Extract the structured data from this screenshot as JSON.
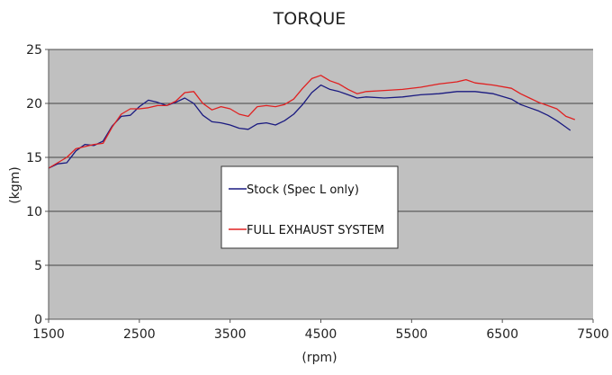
{
  "chart_data": {
    "type": "line",
    "title": "TORQUE",
    "xlabel": "(rpm)",
    "ylabel": "(kgm)",
    "xlim": [
      1500,
      7500
    ],
    "ylim": [
      0,
      25
    ],
    "xticks": [
      1500,
      2500,
      3500,
      4500,
      5500,
      6500,
      7500
    ],
    "yticks": [
      0,
      5,
      10,
      15,
      20,
      25
    ],
    "grid": "horizontal",
    "legend_placement": "center",
    "background": "#c0c0c0",
    "series": [
      {
        "name": "Stock (Spec L only)",
        "color": "#1a1a80",
        "points": [
          [
            1500,
            14.0
          ],
          [
            1600,
            14.4
          ],
          [
            1700,
            14.5
          ],
          [
            1800,
            15.6
          ],
          [
            1900,
            16.2
          ],
          [
            2000,
            16.1
          ],
          [
            2100,
            16.5
          ],
          [
            2200,
            17.9
          ],
          [
            2300,
            18.8
          ],
          [
            2400,
            18.9
          ],
          [
            2500,
            19.7
          ],
          [
            2600,
            20.3
          ],
          [
            2700,
            20.1
          ],
          [
            2800,
            19.8
          ],
          [
            2900,
            20.1
          ],
          [
            3000,
            20.5
          ],
          [
            3100,
            20.0
          ],
          [
            3200,
            18.9
          ],
          [
            3300,
            18.3
          ],
          [
            3400,
            18.2
          ],
          [
            3500,
            18.0
          ],
          [
            3600,
            17.7
          ],
          [
            3700,
            17.6
          ],
          [
            3800,
            18.1
          ],
          [
            3900,
            18.2
          ],
          [
            4000,
            18.0
          ],
          [
            4100,
            18.4
          ],
          [
            4200,
            19.0
          ],
          [
            4300,
            19.9
          ],
          [
            4400,
            21.0
          ],
          [
            4500,
            21.7
          ],
          [
            4600,
            21.3
          ],
          [
            4700,
            21.1
          ],
          [
            4800,
            20.8
          ],
          [
            4900,
            20.5
          ],
          [
            5000,
            20.6
          ],
          [
            5200,
            20.5
          ],
          [
            5400,
            20.6
          ],
          [
            5600,
            20.8
          ],
          [
            5800,
            20.9
          ],
          [
            6000,
            21.1
          ],
          [
            6200,
            21.1
          ],
          [
            6400,
            20.9
          ],
          [
            6600,
            20.4
          ],
          [
            6700,
            19.9
          ],
          [
            6800,
            19.6
          ],
          [
            6900,
            19.3
          ],
          [
            7000,
            18.9
          ],
          [
            7100,
            18.4
          ],
          [
            7200,
            17.8
          ],
          [
            7250,
            17.5
          ]
        ]
      },
      {
        "name": "FULL EXHAUST SYSTEM",
        "color": "#e02020",
        "points": [
          [
            1500,
            14.0
          ],
          [
            1600,
            14.5
          ],
          [
            1700,
            15.0
          ],
          [
            1800,
            15.8
          ],
          [
            1900,
            16.0
          ],
          [
            2000,
            16.2
          ],
          [
            2100,
            16.3
          ],
          [
            2200,
            17.8
          ],
          [
            2300,
            19.0
          ],
          [
            2400,
            19.5
          ],
          [
            2500,
            19.5
          ],
          [
            2600,
            19.6
          ],
          [
            2700,
            19.8
          ],
          [
            2800,
            19.8
          ],
          [
            2900,
            20.2
          ],
          [
            3000,
            21.0
          ],
          [
            3100,
            21.1
          ],
          [
            3200,
            20.0
          ],
          [
            3300,
            19.4
          ],
          [
            3400,
            19.7
          ],
          [
            3500,
            19.5
          ],
          [
            3600,
            19.0
          ],
          [
            3700,
            18.8
          ],
          [
            3800,
            19.7
          ],
          [
            3900,
            19.8
          ],
          [
            4000,
            19.7
          ],
          [
            4100,
            19.9
          ],
          [
            4200,
            20.4
          ],
          [
            4300,
            21.4
          ],
          [
            4400,
            22.3
          ],
          [
            4500,
            22.6
          ],
          [
            4600,
            22.1
          ],
          [
            4700,
            21.8
          ],
          [
            4800,
            21.3
          ],
          [
            4900,
            20.9
          ],
          [
            5000,
            21.1
          ],
          [
            5200,
            21.2
          ],
          [
            5400,
            21.3
          ],
          [
            5600,
            21.5
          ],
          [
            5800,
            21.8
          ],
          [
            6000,
            22.0
          ],
          [
            6100,
            22.2
          ],
          [
            6200,
            21.9
          ],
          [
            6400,
            21.7
          ],
          [
            6600,
            21.4
          ],
          [
            6700,
            20.9
          ],
          [
            6800,
            20.5
          ],
          [
            6900,
            20.1
          ],
          [
            7000,
            19.8
          ],
          [
            7100,
            19.5
          ],
          [
            7200,
            18.8
          ],
          [
            7300,
            18.5
          ]
        ]
      }
    ]
  }
}
